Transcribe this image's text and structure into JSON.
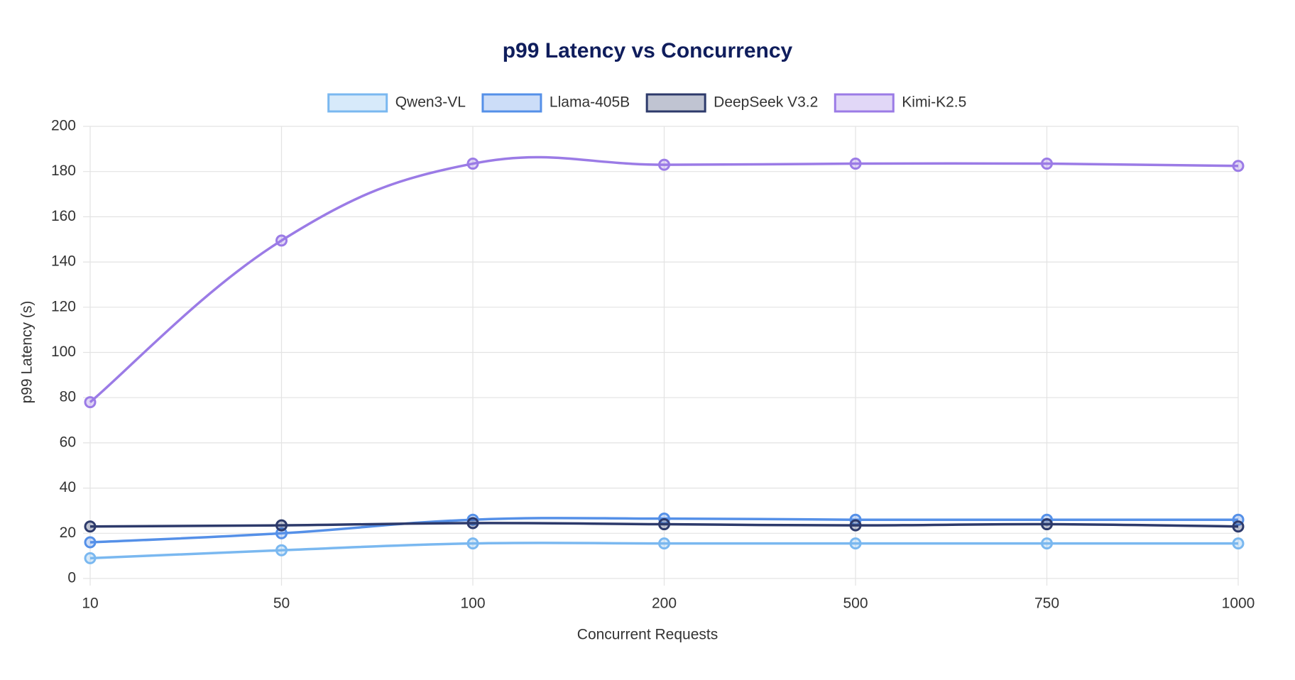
{
  "chart_data": {
    "type": "line",
    "title": "p99 Latency vs Concurrency",
    "x_label": "Concurrent Requests",
    "y_label": "p99 Latency (s)",
    "categories": [
      "10",
      "50",
      "100",
      "200",
      "500",
      "750",
      "1000"
    ],
    "series": [
      {
        "name": "Qwen3-VL",
        "color": "#7ab8f0",
        "values": [
          9,
          12.5,
          15.5,
          15.5,
          15.5,
          15.5,
          15.5
        ]
      },
      {
        "name": "Llama-405B",
        "color": "#5590e8",
        "values": [
          16,
          20,
          26,
          26.5,
          26,
          26,
          26
        ]
      },
      {
        "name": "DeepSeek V3.2",
        "color": "#2d3a6b",
        "values": [
          23,
          23.5,
          24.5,
          24,
          23.5,
          24,
          23
        ]
      },
      {
        "name": "Kimi-K2.5",
        "color": "#9b7be6",
        "values": [
          78,
          149.5,
          183.5,
          183,
          183.5,
          183.5,
          182.5
        ]
      }
    ],
    "ylim": [
      0,
      200
    ],
    "yticks": [
      0,
      20,
      40,
      60,
      80,
      100,
      120,
      140,
      160,
      180,
      200
    ],
    "grid": true,
    "legend": "top"
  }
}
